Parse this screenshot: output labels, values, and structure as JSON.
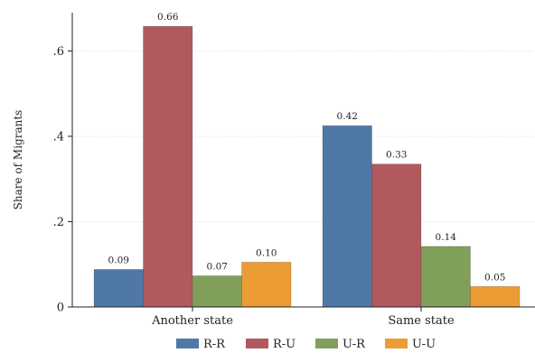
{
  "chart_data": {
    "type": "bar",
    "categories": [
      "Another state",
      "Same state"
    ],
    "series": [
      {
        "name": "R-R",
        "values": [
          0.09,
          0.42
        ],
        "color": "#4e79a7"
      },
      {
        "name": "R-U",
        "values": [
          0.66,
          0.33
        ],
        "color": "#b05a5e"
      },
      {
        "name": "U-R",
        "values": [
          0.07,
          0.14
        ],
        "color": "#7f9f5a"
      },
      {
        "name": "U-U",
        "values": [
          0.1,
          0.05
        ],
        "color": "#eb9c34"
      }
    ],
    "bar_values": [
      [
        0.088,
        0.425
      ],
      [
        0.658,
        0.335
      ],
      [
        0.073,
        0.142
      ],
      [
        0.105,
        0.048
      ]
    ],
    "data_labels": [
      [
        "0.09",
        "0.42"
      ],
      [
        "0.66",
        "0.33"
      ],
      [
        "0.07",
        "0.14"
      ],
      [
        "0.10",
        "0.05"
      ]
    ],
    "title": "",
    "xlabel": "",
    "ylabel": "Share of Migrants",
    "ylim": [
      0,
      0.69
    ],
    "yticks": [
      {
        "value": 0,
        "label": "0"
      },
      {
        "value": 0.2,
        "label": ".2"
      },
      {
        "value": 0.4,
        "label": ".4"
      },
      {
        "value": 0.6,
        "label": ".6"
      }
    ],
    "grid": true,
    "legend_position": "bottom"
  }
}
